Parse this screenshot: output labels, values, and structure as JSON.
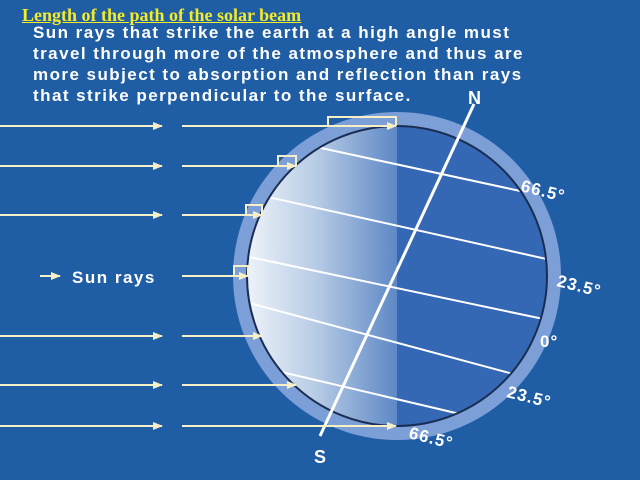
{
  "title": "Length of the path of the solar beam",
  "description": "Sun rays that strike the earth at a high angle must\ntravel through more of the atmosphere and thus are\nmore subject to absorption and reflection than rays\nthat strike perpendicular to the surface.",
  "sun_rays_label": "Sun rays",
  "pole_labels": {
    "north": "N",
    "south": "S"
  },
  "latitude_labels": {
    "n66": "66.5°",
    "n23": "23.5°",
    "equator": "0°",
    "s23": "23.5°",
    "s66": "66.5°"
  },
  "colors": {
    "background": "#1f5da4",
    "title": "#f4ec2a",
    "ray": "#f6efc8",
    "atmosphere": "#7c9fd8",
    "night_side": "#3467b4"
  }
}
